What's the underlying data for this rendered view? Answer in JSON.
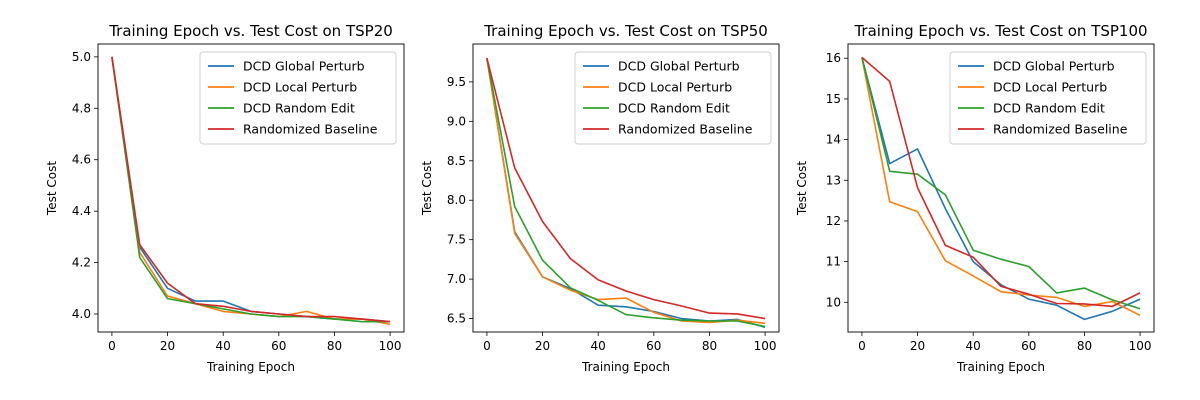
{
  "chart_data": [
    {
      "type": "line",
      "title": "Training Epoch vs. Test Cost on TSP20",
      "xlabel": "Training Epoch",
      "ylabel": "Test Cost",
      "xlim": [
        -5,
        105
      ],
      "ylim": [
        3.93,
        5.05
      ],
      "xticks": [
        "0",
        "20",
        "40",
        "60",
        "80",
        "100"
      ],
      "yticks": [
        "4.0",
        "4.2",
        "4.4",
        "4.6",
        "4.8",
        "5.0"
      ],
      "legend_position": "top-right",
      "x": [
        0,
        10,
        20,
        30,
        40,
        50,
        60,
        70,
        80,
        90,
        100
      ],
      "series": [
        {
          "name": "DCD Global Perturb",
          "color": "#1f77b4",
          "values": [
            5.0,
            4.26,
            4.1,
            4.05,
            4.05,
            4.01,
            4.0,
            3.99,
            3.98,
            3.98,
            3.97
          ]
        },
        {
          "name": "DCD Local Perturb",
          "color": "#ff7f0e",
          "values": [
            5.0,
            4.24,
            4.07,
            4.04,
            4.01,
            4.0,
            3.99,
            4.01,
            3.98,
            3.98,
            3.96
          ]
        },
        {
          "name": "DCD Random Edit",
          "color": "#2ca02c",
          "values": [
            5.0,
            4.22,
            4.06,
            4.04,
            4.02,
            4.0,
            3.99,
            3.99,
            3.98,
            3.97,
            3.97
          ]
        },
        {
          "name": "Randomized Baseline",
          "color": "#d62728",
          "values": [
            5.0,
            4.27,
            4.12,
            4.04,
            4.03,
            4.01,
            4.0,
            3.99,
            3.99,
            3.98,
            3.97
          ]
        }
      ]
    },
    {
      "type": "line",
      "title": "Training Epoch vs. Test Cost on TSP50",
      "xlabel": "Training Epoch",
      "ylabel": "Test Cost",
      "xlim": [
        -5,
        105
      ],
      "ylim": [
        6.33,
        9.98
      ],
      "xticks": [
        "0",
        "20",
        "40",
        "60",
        "80",
        "100"
      ],
      "yticks": [
        "6.5",
        "7.0",
        "7.5",
        "8.0",
        "8.5",
        "9.0",
        "9.5"
      ],
      "legend_position": "top-right",
      "x": [
        0,
        10,
        20,
        30,
        40,
        50,
        60,
        70,
        80,
        90,
        100
      ],
      "series": [
        {
          "name": "DCD Global Perturb",
          "color": "#1f77b4",
          "values": [
            9.8,
            7.6,
            7.03,
            6.88,
            6.67,
            6.65,
            6.59,
            6.5,
            6.47,
            6.49,
            6.39
          ]
        },
        {
          "name": "DCD Local Perturb",
          "color": "#ff7f0e",
          "values": [
            9.8,
            7.58,
            7.03,
            6.86,
            6.74,
            6.76,
            6.58,
            6.47,
            6.45,
            6.48,
            6.44
          ]
        },
        {
          "name": "DCD Random Edit",
          "color": "#2ca02c",
          "values": [
            9.8,
            7.92,
            7.24,
            6.89,
            6.73,
            6.55,
            6.51,
            6.48,
            6.47,
            6.47,
            6.4
          ]
        },
        {
          "name": "Randomized Baseline",
          "color": "#d62728",
          "values": [
            9.8,
            8.41,
            7.73,
            7.26,
            6.99,
            6.85,
            6.74,
            6.66,
            6.57,
            6.56,
            6.5
          ]
        }
      ]
    },
    {
      "type": "line",
      "title": "Training Epoch vs. Test Cost on TSP100",
      "xlabel": "Training Epoch",
      "ylabel": "Test Cost",
      "xlim": [
        -5,
        105
      ],
      "ylim": [
        9.27,
        16.35
      ],
      "xticks": [
        "0",
        "20",
        "40",
        "60",
        "80",
        "100"
      ],
      "yticks": [
        "10",
        "11",
        "12",
        "13",
        "14",
        "15",
        "16"
      ],
      "legend_position": "top-right",
      "x": [
        0,
        10,
        20,
        30,
        40,
        50,
        60,
        70,
        80,
        90,
        100
      ],
      "series": [
        {
          "name": "DCD Global Perturb",
          "color": "#1f77b4",
          "values": [
            16.02,
            13.41,
            13.77,
            12.3,
            11.0,
            10.43,
            10.08,
            9.93,
            9.58,
            9.78,
            10.08
          ]
        },
        {
          "name": "DCD Local Perturb",
          "color": "#ff7f0e",
          "values": [
            16.02,
            12.47,
            12.23,
            11.02,
            10.65,
            10.26,
            10.18,
            10.12,
            9.9,
            10.02,
            9.68
          ]
        },
        {
          "name": "DCD Random Edit",
          "color": "#2ca02c",
          "values": [
            16.02,
            13.22,
            13.15,
            12.64,
            11.28,
            11.06,
            10.88,
            10.23,
            10.35,
            10.06,
            9.84
          ]
        },
        {
          "name": "Randomized Baseline",
          "color": "#d62728",
          "values": [
            16.02,
            15.43,
            12.82,
            11.4,
            11.11,
            10.39,
            10.2,
            9.97,
            9.96,
            9.9,
            10.23
          ]
        }
      ]
    }
  ]
}
